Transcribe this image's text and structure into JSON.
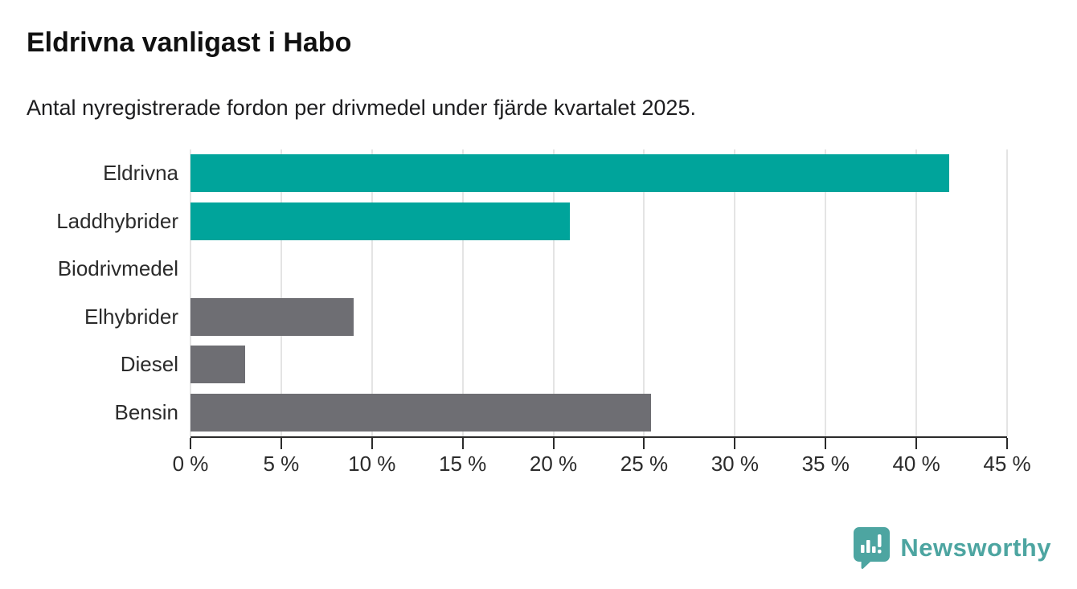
{
  "header": {
    "title": "Eldrivna vanligast i Habo",
    "subtitle": "Antal nyregistrerade fordon per drivmedel under fjärde kvartalet 2025."
  },
  "chart_data": {
    "type": "bar",
    "orientation": "horizontal",
    "title": "Eldrivna vanligast i Habo",
    "subtitle": "Antal nyregistrerade fordon per drivmedel under fjärde kvartalet 2025.",
    "categories": [
      "Eldrivna",
      "Laddhybrider",
      "Biodrivmedel",
      "Elhybrider",
      "Diesel",
      "Bensin"
    ],
    "values": [
      41.8,
      20.9,
      0,
      9,
      3,
      25.4
    ],
    "unit": "%",
    "bar_colors": [
      "#00a49b",
      "#00a49b",
      "#6e6e73",
      "#6e6e73",
      "#6e6e73",
      "#6e6e73"
    ],
    "xlim": [
      0,
      45
    ],
    "x_ticks": [
      0,
      5,
      10,
      15,
      20,
      25,
      30,
      35,
      40,
      45
    ],
    "x_tick_labels": [
      "0 %",
      "5 %",
      "10 %",
      "15 %",
      "20 %",
      "25 %",
      "30 %",
      "35 %",
      "40 %",
      "45 %"
    ],
    "grid": "vertical",
    "legend": "none"
  },
  "footer": {
    "brand": "Newsworthy"
  },
  "colors": {
    "accent_teal": "#00a49b",
    "neutral_gray": "#6e6e73",
    "brand_teal": "#4da5a1",
    "gridline": "#e4e4e4",
    "axis": "#2b2b2b",
    "text": "#1d1d1f"
  }
}
